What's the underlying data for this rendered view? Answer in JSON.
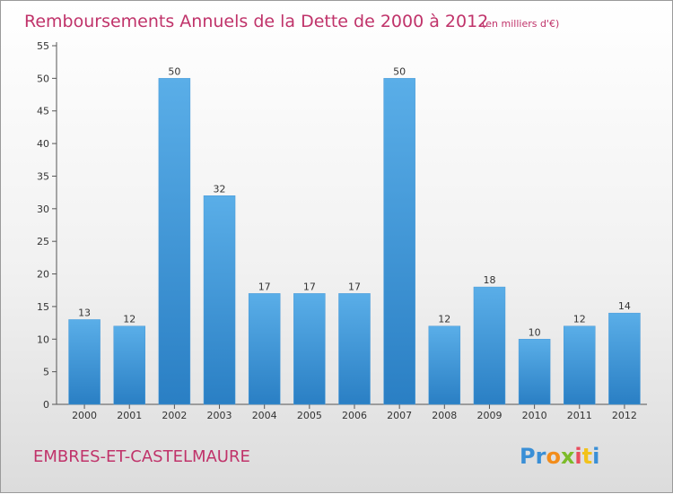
{
  "chart_data": {
    "type": "bar",
    "title": "Remboursements Annuels de la Dette de 2000 à 2012",
    "subtitle": "(en milliers d'€)",
    "categories": [
      "2000",
      "2001",
      "2002",
      "2003",
      "2004",
      "2005",
      "2006",
      "2007",
      "2008",
      "2009",
      "2010",
      "2011",
      "2012"
    ],
    "values": [
      13,
      12,
      50,
      32,
      17,
      17,
      17,
      50,
      12,
      18,
      10,
      12,
      14
    ],
    "ylim": [
      0,
      55
    ],
    "yticks": [
      0,
      5,
      10,
      15,
      20,
      25,
      30,
      35,
      40,
      45,
      50,
      55
    ],
    "xlabel": "",
    "ylabel": "",
    "grid": false
  },
  "commune": "EMBRES-ET-CASTELMAURE",
  "logo": {
    "letters": [
      "P",
      "r",
      "o",
      "x",
      "i",
      "t",
      "i"
    ],
    "colors": [
      "#3a8fd6",
      "#3a8fd6",
      "#f28c1b",
      "#7cbb2a",
      "#e94c5d",
      "#f2c21b",
      "#3a8fd6"
    ]
  },
  "colors": {
    "bar_light": "#5aaee8",
    "bar_dark": "#2a7fc4",
    "title": "#c0336a"
  }
}
